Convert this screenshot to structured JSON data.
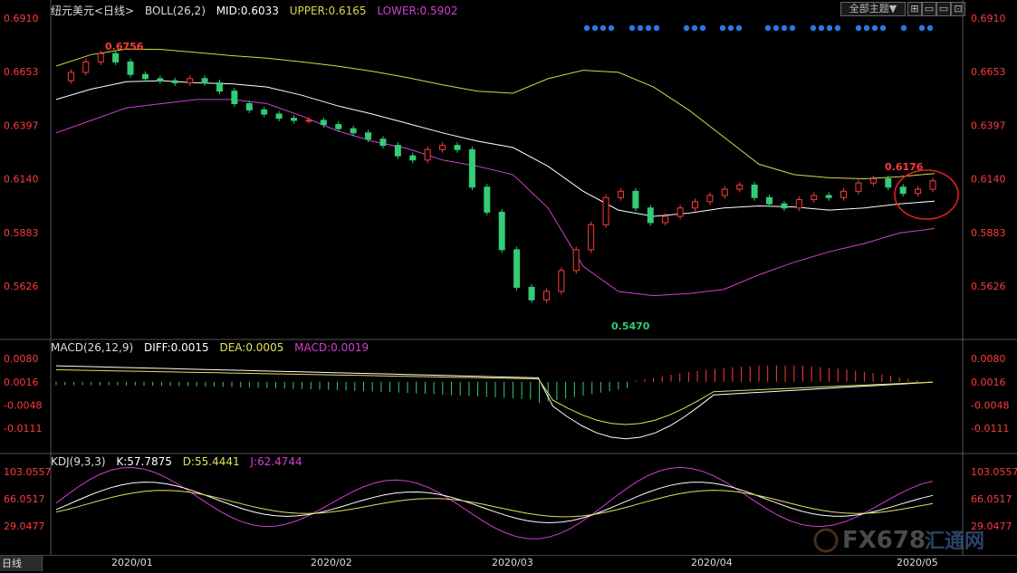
{
  "header": {
    "symbol": "纽元美元<日线>",
    "boll_label": "BOLL(26,2)",
    "mid": "MID:0.6033",
    "upper": "UPPER:0.6165",
    "lower": "LOWER:0.5902",
    "theme_button": "全部主题▼",
    "macd_label": "MACD(26,12,9)",
    "diff": "DIFF:0.0015",
    "dea": "DEA:0.0005",
    "macd_val": "MACD:0.0019",
    "kdj_label": "KDJ(9,3,3)",
    "k": "K:57.7875",
    "d": "D:55.4441",
    "j": "J:62.4744",
    "tab_label": "日线"
  },
  "watermark": {
    "text": "FX678",
    "cn": "汇通网"
  },
  "colors": {
    "up": "#ff3b3b",
    "down": "#33cc77",
    "upper": "#d8d84a",
    "mid": "#ffffff",
    "lower": "#d23fd2",
    "axis": "#ff3b3b",
    "dea": "#e0e060"
  },
  "chart_data": [
    {
      "type": "candlestick",
      "y_ticks": [
        "0.6910",
        "0.6653",
        "0.6397",
        "0.6140",
        "0.5883",
        "0.5626"
      ],
      "ylim": [
        0.547,
        0.691
      ],
      "annotations": [
        "0.6756",
        "0.6176",
        "0.5470"
      ],
      "x_ticks": [
        "2020/01",
        "2020/02",
        "2020/03",
        "2020/04",
        "2020/05"
      ],
      "series": [
        {
          "name": "UPPER",
          "values": [
            0.668,
            0.6735,
            0.6762,
            0.676,
            0.6745,
            0.673,
            0.6718,
            0.67,
            0.668,
            0.6655,
            0.6625,
            0.659,
            0.656,
            0.655,
            0.662,
            0.666,
            0.665,
            0.658,
            0.647,
            0.634,
            0.621,
            0.616,
            0.6145,
            0.614,
            0.615,
            0.6165
          ]
        },
        {
          "name": "MID",
          "values": [
            0.652,
            0.657,
            0.6605,
            0.661,
            0.66,
            0.6595,
            0.658,
            0.654,
            0.649,
            0.645,
            0.6405,
            0.636,
            0.632,
            0.629,
            0.62,
            0.608,
            0.599,
            0.596,
            0.5975,
            0.6,
            0.601,
            0.6005,
            0.599,
            0.6,
            0.602,
            0.6033
          ]
        },
        {
          "name": "LOWER",
          "values": [
            0.636,
            0.642,
            0.648,
            0.65,
            0.652,
            0.652,
            0.65,
            0.644,
            0.637,
            0.632,
            0.6285,
            0.623,
            0.62,
            0.616,
            0.6,
            0.572,
            0.56,
            0.558,
            0.559,
            0.561,
            0.568,
            0.574,
            0.579,
            0.583,
            0.588,
            0.5902
          ]
        }
      ]
    },
    {
      "type": "bar",
      "y_ticks": [
        "0.0080",
        "0.0016",
        "-0.0048",
        "-0.0111"
      ],
      "ylim": [
        -0.0111,
        0.008
      ]
    },
    {
      "type": "line",
      "y_ticks": [
        "103.0557",
        "66.0517",
        "29.0477"
      ],
      "ylim": [
        29.0477,
        103.0557
      ]
    }
  ]
}
